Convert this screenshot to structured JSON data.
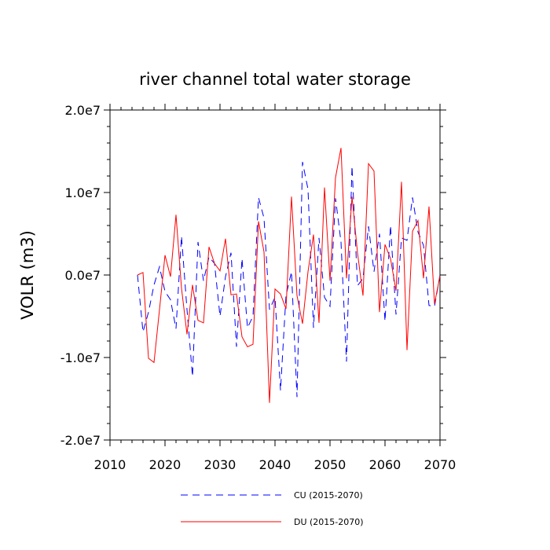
{
  "chart_data": {
    "type": "line",
    "title": "river channel total water storage",
    "xlabel": "",
    "ylabel": "VOLR  (m3)",
    "xlim": [
      2010,
      2070
    ],
    "ylim": [
      -20000000,
      20000000
    ],
    "x_ticks": [
      2010,
      2020,
      2030,
      2040,
      2050,
      2060,
      2070
    ],
    "x_tick_labels": [
      "2010",
      "2020",
      "2030",
      "2040",
      "2050",
      "2060",
      "2070"
    ],
    "y_ticks": [
      -20000000,
      -10000000,
      0,
      10000000,
      20000000
    ],
    "y_tick_labels": [
      "-2.0e7",
      "-1.0e7",
      "0.0e7",
      "1.0e7",
      "2.0e7"
    ],
    "legend_position": "bottom-center",
    "series": [
      {
        "name": "CU (2015-2070)",
        "color": "#0000ff",
        "style": "dashed",
        "x": [
          2015,
          2016,
          2017,
          2018,
          2019,
          2020,
          2021,
          2022,
          2023,
          2024,
          2025,
          2026,
          2027,
          2028,
          2029,
          2030,
          2031,
          2032,
          2033,
          2034,
          2035,
          2036,
          2037,
          2038,
          2039,
          2040,
          2041,
          2042,
          2043,
          2044,
          2045,
          2046,
          2047,
          2048,
          2049,
          2050,
          2051,
          2052,
          2053,
          2054,
          2055,
          2056,
          2057,
          2058,
          2059,
          2060,
          2061,
          2062,
          2063,
          2064,
          2065,
          2066,
          2067,
          2068,
          2069,
          2070
        ],
        "values": [
          0,
          -6900000,
          -4500000,
          -1200000,
          1000000,
          -2000000,
          -3000000,
          -6500000,
          4700000,
          -4200000,
          -12300000,
          4000000,
          -700000,
          2200000,
          1400000,
          -5000000,
          -200000,
          2700000,
          -8700000,
          2000000,
          -6400000,
          -5000000,
          9400000,
          6900000,
          -4200000,
          -2700000,
          -14000000,
          -2500000,
          400000,
          -14800000,
          13700000,
          10400000,
          -6400000,
          4500000,
          -2700000,
          -3800000,
          9300000,
          4000000,
          -10500000,
          13200000,
          -1300000,
          -400000,
          5900000,
          400000,
          5000000,
          -5600000,
          6000000,
          -4800000,
          4500000,
          4200000,
          9400000,
          5200000,
          3600000,
          -3700000,
          -3800000,
          0
        ]
      },
      {
        "name": "DU (2015-2070)",
        "color": "#ff0000",
        "style": "solid",
        "x": [
          2015,
          2016,
          2017,
          2018,
          2019,
          2020,
          2021,
          2022,
          2023,
          2024,
          2025,
          2026,
          2027,
          2028,
          2029,
          2030,
          2031,
          2032,
          2033,
          2034,
          2035,
          2036,
          2037,
          2038,
          2039,
          2040,
          2041,
          2042,
          2043,
          2044,
          2045,
          2046,
          2047,
          2048,
          2049,
          2050,
          2051,
          2052,
          2053,
          2054,
          2055,
          2056,
          2057,
          2058,
          2059,
          2060,
          2061,
          2062,
          2063,
          2064,
          2065,
          2066,
          2067,
          2068,
          2069,
          2070
        ],
        "values": [
          0,
          300000,
          -10100000,
          -10600000,
          -4200000,
          2400000,
          -200000,
          7300000,
          -1600000,
          -7200000,
          -1200000,
          -5500000,
          -5800000,
          3400000,
          1400000,
          500000,
          4400000,
          -2400000,
          -2300000,
          -7500000,
          -8700000,
          -8400000,
          6500000,
          2800000,
          -15500000,
          -1700000,
          -2300000,
          -4100000,
          9500000,
          -2500000,
          -5900000,
          400000,
          4900000,
          -5800000,
          10600000,
          -700000,
          11800000,
          15400000,
          -400000,
          9500000,
          2700000,
          -2500000,
          13500000,
          12600000,
          -4500000,
          3700000,
          2000000,
          -1900000,
          11300000,
          -9100000,
          5300000,
          6600000,
          -400000,
          8300000,
          -3500000,
          -100000
        ]
      }
    ]
  }
}
